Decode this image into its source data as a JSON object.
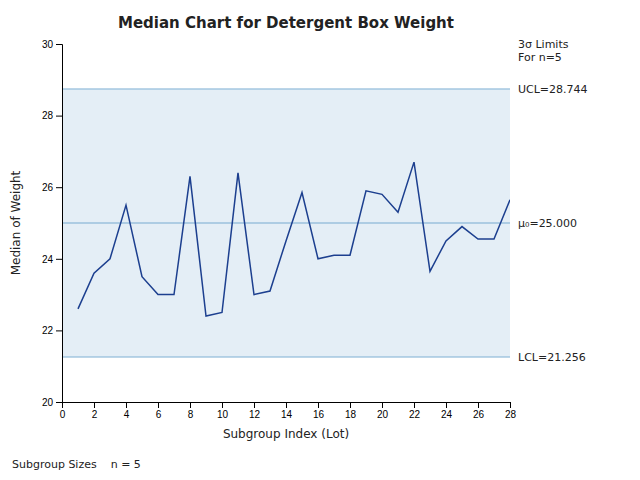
{
  "chart_data": {
    "type": "line",
    "title": "Median Chart for Detergent Box Weight",
    "x_label": "Subgroup Index (Lot)",
    "y_label": "Median of Weight",
    "x": [
      1,
      2,
      3,
      4,
      5,
      6,
      7,
      8,
      9,
      10,
      11,
      12,
      13,
      14,
      15,
      16,
      17,
      18,
      19,
      20,
      21,
      22,
      23,
      24,
      25,
      26,
      27,
      28
    ],
    "values": [
      22.6,
      23.6,
      24.0,
      25.5,
      23.5,
      23.0,
      23.0,
      26.3,
      22.4,
      22.5,
      26.4,
      23.0,
      23.1,
      24.5,
      25.85,
      24.0,
      24.1,
      24.1,
      25.9,
      25.8,
      25.3,
      26.7,
      23.65,
      24.5,
      24.9,
      24.55,
      24.55,
      25.65
    ],
    "color": "#1c3f8f",
    "xlim": [
      0,
      28
    ],
    "ylim": [
      20,
      30
    ],
    "xticks": [
      0,
      2,
      4,
      6,
      8,
      10,
      12,
      14,
      16,
      18,
      20,
      22,
      24,
      26,
      28
    ],
    "yticks": [
      20,
      22,
      24,
      26,
      28,
      30
    ],
    "grid": false,
    "band": {
      "from": 21.256,
      "to": 28.744,
      "label": "3σ Limits\nFor n=5"
    },
    "reference_lines": [
      {
        "value": 28.744,
        "label": "UCL=28.744"
      },
      {
        "value": 25.0,
        "label": "μ₀=25.000"
      },
      {
        "value": 21.256,
        "label": "LCL=21.256"
      }
    ],
    "footer": "Subgroup Sizes    n = 5"
  }
}
